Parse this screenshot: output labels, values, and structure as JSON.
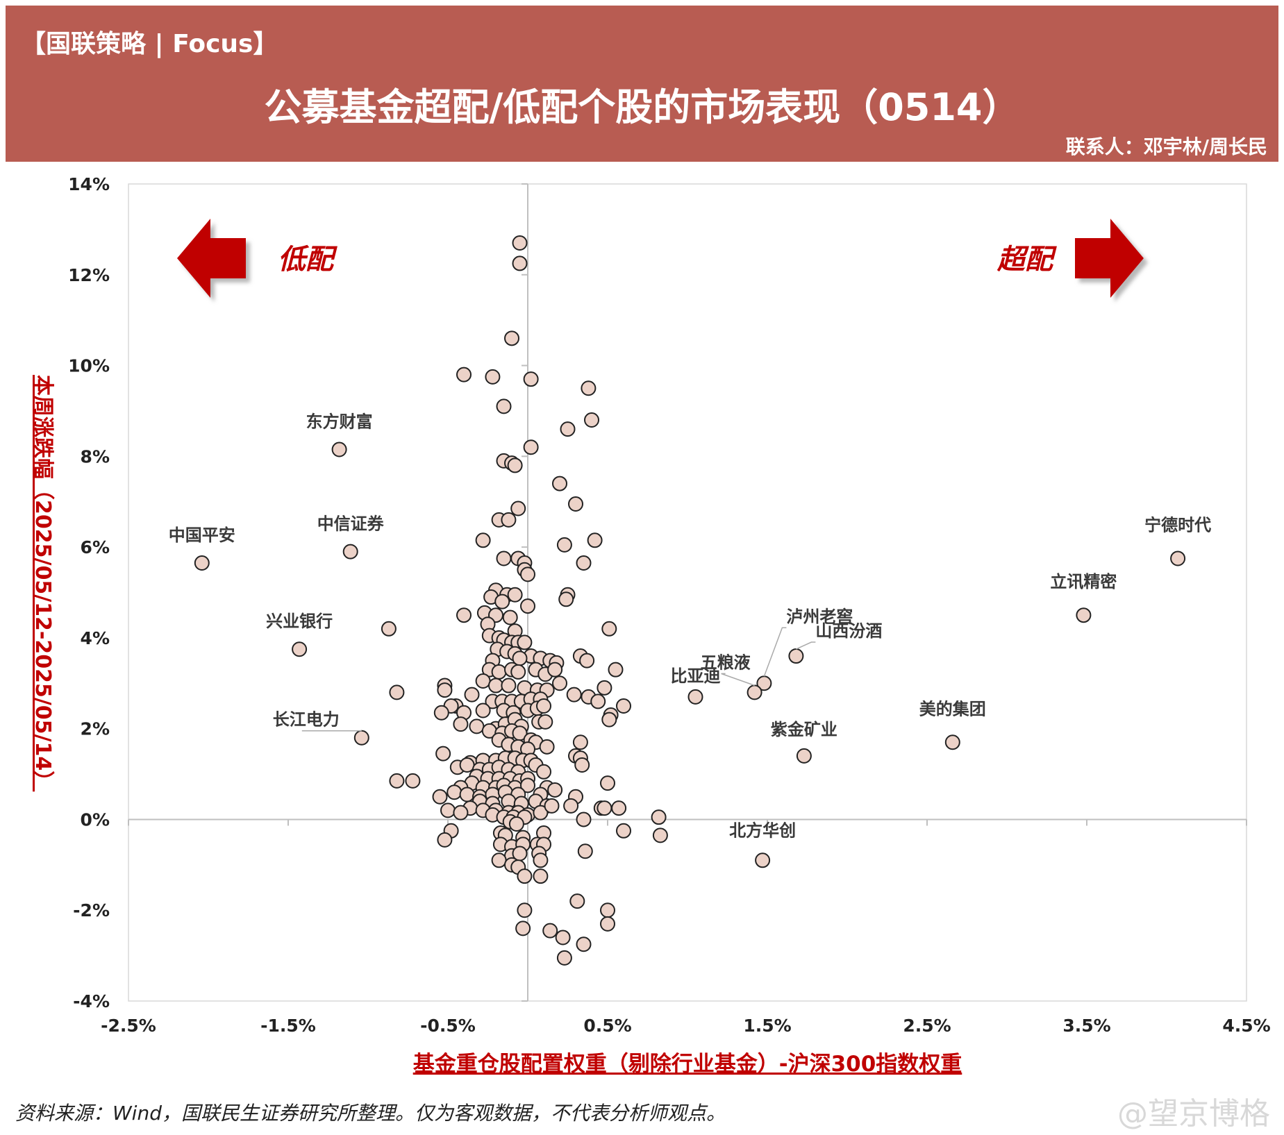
{
  "header": {
    "tag": "【国联策略 | Focus】",
    "title": "公募基金超配/低配个股的市场表现（0514）",
    "contact": "联系人：邓宇林/周长民"
  },
  "footer": {
    "source": "资料来源：Wind，国联民生证券研究所整理。仅为客观数据，不代表分析师观点。",
    "watermark": "@望京博格"
  },
  "colors": {
    "banner": "#b85c52",
    "accent": "#c00000",
    "point_fill": "#ecd2c8",
    "point_stroke": "#222222",
    "arrow": "#c00000"
  },
  "chart_data": {
    "type": "scatter",
    "xlabel": "基金重仓股配置权重（剔除行业基金）-沪深300指数权重",
    "ylabel": "本周涨跌幅（2025/05/12-2025/05/14）",
    "xlim": [
      -2.5,
      4.5
    ],
    "ylim": [
      -4,
      14
    ],
    "x_ticks": [
      -2.5,
      -1.5,
      -0.5,
      0.5,
      1.5,
      2.5,
      3.5,
      4.5
    ],
    "y_ticks": [
      -4,
      -2,
      0,
      2,
      4,
      6,
      8,
      10,
      12,
      14
    ],
    "x_tick_labels": [
      "-2.5%",
      "-1.5%",
      "-0.5%",
      "0.5%",
      "1.5%",
      "2.5%",
      "3.5%",
      "4.5%"
    ],
    "y_tick_labels": [
      "-4%",
      "-2%",
      "0%",
      "2%",
      "4%",
      "6%",
      "8%",
      "10%",
      "12%",
      "14%"
    ],
    "annotations": {
      "left": "低配",
      "right": "超配"
    },
    "labeled_points": [
      {
        "name": "宁德时代",
        "x": 4.07,
        "y": 5.75
      },
      {
        "name": "立讯精密",
        "x": 3.48,
        "y": 4.5
      },
      {
        "name": "美的集团",
        "x": 2.66,
        "y": 1.7
      },
      {
        "name": "紫金矿业",
        "x": 1.73,
        "y": 1.4
      },
      {
        "name": "山西汾酒",
        "x": 1.68,
        "y": 3.6
      },
      {
        "name": "泸州老窖",
        "x": 1.48,
        "y": 3.0
      },
      {
        "name": "五粮液",
        "x": 1.42,
        "y": 2.8
      },
      {
        "name": "比亚迪",
        "x": 1.05,
        "y": 2.7
      },
      {
        "name": "北方华创",
        "x": 1.47,
        "y": -0.9
      },
      {
        "name": "中国平安",
        "x": -2.04,
        "y": 5.65
      },
      {
        "name": "东方财富",
        "x": -1.18,
        "y": 8.15
      },
      {
        "name": "中信证券",
        "x": -1.11,
        "y": 5.9
      },
      {
        "name": "兴业银行",
        "x": -1.43,
        "y": 3.75
      },
      {
        "name": "长江电力",
        "x": -1.04,
        "y": 1.8
      }
    ],
    "points": [
      [
        -0.05,
        12.7
      ],
      [
        -0.05,
        12.25
      ],
      [
        -0.1,
        10.6
      ],
      [
        -0.4,
        9.8
      ],
      [
        -0.22,
        9.75
      ],
      [
        0.02,
        9.7
      ],
      [
        -0.15,
        9.1
      ],
      [
        0.38,
        9.5
      ],
      [
        0.4,
        8.8
      ],
      [
        0.25,
        8.6
      ],
      [
        0.02,
        8.2
      ],
      [
        -0.15,
        7.9
      ],
      [
        -0.1,
        7.85
      ],
      [
        -0.08,
        7.8
      ],
      [
        0.2,
        7.4
      ],
      [
        0.3,
        6.95
      ],
      [
        -0.06,
        6.85
      ],
      [
        -0.18,
        6.6
      ],
      [
        -0.12,
        6.6
      ],
      [
        -0.28,
        6.15
      ],
      [
        0.23,
        6.05
      ],
      [
        0.42,
        6.15
      ],
      [
        -0.15,
        5.75
      ],
      [
        -0.06,
        5.75
      ],
      [
        -0.02,
        5.65
      ],
      [
        0.35,
        5.65
      ],
      [
        -0.02,
        5.5
      ],
      [
        0.0,
        5.4
      ],
      [
        -0.2,
        5.05
      ],
      [
        -0.23,
        4.9
      ],
      [
        -0.13,
        4.95
      ],
      [
        -0.08,
        4.95
      ],
      [
        0.25,
        4.95
      ],
      [
        0.24,
        4.85
      ],
      [
        -0.16,
        4.8
      ],
      [
        0.0,
        4.7
      ],
      [
        -0.4,
        4.5
      ],
      [
        -0.27,
        4.55
      ],
      [
        -0.2,
        4.5
      ],
      [
        -0.11,
        4.45
      ],
      [
        -0.25,
        4.3
      ],
      [
        -0.08,
        4.15
      ],
      [
        -0.24,
        4.05
      ],
      [
        -0.18,
        4.0
      ],
      [
        -0.15,
        3.95
      ],
      [
        -0.1,
        3.9
      ],
      [
        -0.06,
        3.9
      ],
      [
        -0.02,
        3.9
      ],
      [
        -0.19,
        3.75
      ],
      [
        -0.13,
        3.7
      ],
      [
        -0.08,
        3.65
      ],
      [
        0.02,
        3.6
      ],
      [
        0.08,
        3.55
      ],
      [
        0.14,
        3.5
      ],
      [
        -0.22,
        3.5
      ],
      [
        -0.05,
        3.55
      ],
      [
        0.18,
        3.45
      ],
      [
        0.33,
        3.6
      ],
      [
        0.37,
        3.5
      ],
      [
        0.51,
        4.2
      ],
      [
        -0.24,
        3.3
      ],
      [
        -0.18,
        3.25
      ],
      [
        -0.1,
        3.3
      ],
      [
        -0.06,
        3.25
      ],
      [
        0.05,
        3.3
      ],
      [
        0.11,
        3.2
      ],
      [
        0.17,
        3.3
      ],
      [
        0.2,
        3.0
      ],
      [
        0.55,
        3.3
      ],
      [
        -0.28,
        3.05
      ],
      [
        -0.2,
        2.95
      ],
      [
        -0.12,
        2.95
      ],
      [
        -0.02,
        2.9
      ],
      [
        0.06,
        2.85
      ],
      [
        0.12,
        2.85
      ],
      [
        0.48,
        2.9
      ],
      [
        -0.52,
        2.95
      ],
      [
        -0.52,
        2.85
      ],
      [
        -0.45,
        2.5
      ],
      [
        -0.35,
        2.75
      ],
      [
        -0.22,
        2.6
      ],
      [
        -0.16,
        2.6
      ],
      [
        -0.1,
        2.6
      ],
      [
        -0.04,
        2.6
      ],
      [
        0.02,
        2.65
      ],
      [
        0.08,
        2.65
      ],
      [
        0.29,
        2.75
      ],
      [
        0.38,
        2.7
      ],
      [
        0.44,
        2.6
      ],
      [
        0.6,
        2.5
      ],
      [
        -0.48,
        2.5
      ],
      [
        -0.4,
        2.35
      ],
      [
        -0.28,
        2.4
      ],
      [
        -0.15,
        2.4
      ],
      [
        -0.09,
        2.35
      ],
      [
        0.0,
        2.4
      ],
      [
        0.06,
        2.45
      ],
      [
        0.1,
        2.5
      ],
      [
        0.52,
        2.3
      ],
      [
        0.51,
        2.2
      ],
      [
        -0.42,
        2.1
      ],
      [
        -0.32,
        2.05
      ],
      [
        -0.2,
        2.0
      ],
      [
        -0.14,
        2.1
      ],
      [
        -0.08,
        2.2
      ],
      [
        -0.04,
        2.05
      ],
      [
        0.07,
        2.15
      ],
      [
        0.11,
        2.15
      ],
      [
        -0.54,
        2.35
      ],
      [
        -0.24,
        1.95
      ],
      [
        -0.16,
        1.9
      ],
      [
        -0.1,
        1.95
      ],
      [
        -0.05,
        1.9
      ],
      [
        0.02,
        1.75
      ],
      [
        0.05,
        1.7
      ],
      [
        0.33,
        1.7
      ],
      [
        -0.18,
        1.75
      ],
      [
        -0.12,
        1.65
      ],
      [
        -0.06,
        1.6
      ],
      [
        0.0,
        1.55
      ],
      [
        0.12,
        1.6
      ],
      [
        0.3,
        1.4
      ],
      [
        0.33,
        1.35
      ],
      [
        0.34,
        1.2
      ],
      [
        -0.53,
        1.45
      ],
      [
        -0.36,
        1.25
      ],
      [
        -0.28,
        1.3
      ],
      [
        -0.2,
        1.3
      ],
      [
        -0.14,
        1.35
      ],
      [
        -0.08,
        1.35
      ],
      [
        -0.03,
        1.3
      ],
      [
        0.02,
        1.3
      ],
      [
        0.05,
        1.2
      ],
      [
        -0.44,
        1.15
      ],
      [
        -0.38,
        1.2
      ],
      [
        -0.3,
        1.1
      ],
      [
        -0.24,
        1.1
      ],
      [
        -0.18,
        1.15
      ],
      [
        -0.12,
        1.1
      ],
      [
        -0.06,
        1.05
      ],
      [
        0.1,
        1.05
      ],
      [
        -0.32,
        0.95
      ],
      [
        -0.25,
        0.9
      ],
      [
        -0.18,
        0.9
      ],
      [
        -0.11,
        0.9
      ],
      [
        -0.05,
        0.85
      ],
      [
        0.0,
        0.9
      ],
      [
        -0.35,
        0.8
      ],
      [
        -0.28,
        0.7
      ],
      [
        -0.2,
        0.7
      ],
      [
        -0.15,
        0.75
      ],
      [
        -0.08,
        0.7
      ],
      [
        0.0,
        0.75
      ],
      [
        0.12,
        0.7
      ],
      [
        0.17,
        0.65
      ],
      [
        0.5,
        0.8
      ],
      [
        -0.42,
        0.7
      ],
      [
        -0.46,
        0.6
      ],
      [
        -0.38,
        0.55
      ],
      [
        -0.3,
        0.5
      ],
      [
        -0.22,
        0.55
      ],
      [
        -0.14,
        0.6
      ],
      [
        -0.06,
        0.55
      ],
      [
        0.08,
        0.55
      ],
      [
        0.3,
        0.5
      ],
      [
        -0.55,
        0.5
      ],
      [
        -0.3,
        0.4
      ],
      [
        -0.22,
        0.35
      ],
      [
        -0.12,
        0.4
      ],
      [
        -0.04,
        0.35
      ],
      [
        0.05,
        0.4
      ],
      [
        0.12,
        0.3
      ],
      [
        0.27,
        0.3
      ],
      [
        0.46,
        0.25
      ],
      [
        0.48,
        0.25
      ],
      [
        0.57,
        0.25
      ],
      [
        -0.36,
        0.25
      ],
      [
        -0.28,
        0.2
      ],
      [
        -0.2,
        0.2
      ],
      [
        -0.12,
        0.15
      ],
      [
        -0.06,
        0.15
      ],
      [
        0.0,
        0.1
      ],
      [
        0.08,
        0.15
      ],
      [
        0.15,
        0.3
      ],
      [
        -0.5,
        0.2
      ],
      [
        -0.42,
        0.15
      ],
      [
        -0.22,
        0.1
      ],
      [
        -0.15,
        0.05
      ],
      [
        -0.09,
        0.05
      ],
      [
        -0.02,
        0.05
      ],
      [
        0.82,
        0.05
      ],
      [
        -0.11,
        -0.05
      ],
      [
        -0.07,
        -0.1
      ],
      [
        0.35,
        0.0
      ],
      [
        -0.48,
        -0.25
      ],
      [
        -0.17,
        -0.3
      ],
      [
        -0.14,
        -0.35
      ],
      [
        -0.03,
        -0.4
      ],
      [
        0.1,
        -0.3
      ],
      [
        -0.17,
        -0.55
      ],
      [
        -0.1,
        -0.6
      ],
      [
        -0.03,
        -0.55
      ],
      [
        0.06,
        -0.55
      ],
      [
        0.1,
        -0.55
      ],
      [
        0.6,
        -0.25
      ],
      [
        0.83,
        -0.35
      ],
      [
        -0.1,
        -0.8
      ],
      [
        -0.05,
        -0.75
      ],
      [
        0.07,
        -0.75
      ],
      [
        0.36,
        -0.7
      ],
      [
        -0.18,
        -0.9
      ],
      [
        -0.1,
        -1.0
      ],
      [
        -0.06,
        -1.05
      ],
      [
        0.08,
        -0.9
      ],
      [
        -0.02,
        -1.25
      ],
      [
        0.08,
        -1.25
      ],
      [
        -0.02,
        -2.0
      ],
      [
        -0.03,
        -2.4
      ],
      [
        0.14,
        -2.45
      ],
      [
        0.22,
        -2.6
      ],
      [
        0.31,
        -1.8
      ],
      [
        0.5,
        -2.0
      ],
      [
        0.5,
        -2.3
      ],
      [
        0.35,
        -2.75
      ],
      [
        0.23,
        -3.05
      ],
      [
        -0.87,
        4.2
      ],
      [
        -0.82,
        2.8
      ],
      [
        -0.82,
        0.85
      ],
      [
        -0.72,
        0.85
      ],
      [
        -0.52,
        -0.45
      ]
    ]
  }
}
